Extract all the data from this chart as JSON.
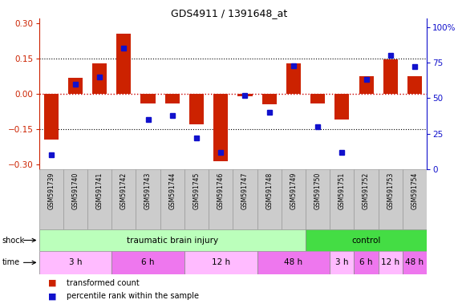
{
  "title": "GDS4911 / 1391648_at",
  "samples": [
    "GSM591739",
    "GSM591740",
    "GSM591741",
    "GSM591742",
    "GSM591743",
    "GSM591744",
    "GSM591745",
    "GSM591746",
    "GSM591747",
    "GSM591748",
    "GSM591749",
    "GSM591750",
    "GSM591751",
    "GSM591752",
    "GSM591753",
    "GSM591754"
  ],
  "bar_values": [
    -0.195,
    0.07,
    0.13,
    0.255,
    -0.04,
    -0.04,
    -0.13,
    -0.285,
    -0.01,
    -0.045,
    0.13,
    -0.04,
    -0.11,
    0.075,
    0.145,
    0.075
  ],
  "dot_values": [
    10,
    60,
    65,
    85,
    35,
    38,
    22,
    12,
    52,
    40,
    73,
    30,
    12,
    63,
    80,
    72
  ],
  "ylim_left": [
    -0.32,
    0.32
  ],
  "ylim_right": [
    0,
    106
  ],
  "yticks_left": [
    -0.3,
    -0.15,
    0,
    0.15,
    0.3
  ],
  "yticks_right": [
    0,
    25,
    50,
    75,
    100
  ],
  "ytick_right_labels": [
    "0",
    "25",
    "50",
    "75",
    "100%"
  ],
  "bar_color": "#cc2200",
  "dot_color": "#1111cc",
  "zero_line_color": "#cc0000",
  "shock_label": "shock",
  "time_label": "time",
  "shock_groups": [
    {
      "label": "traumatic brain injury",
      "start": 0,
      "end": 11,
      "color": "#bbffbb"
    },
    {
      "label": "control",
      "start": 11,
      "end": 16,
      "color": "#44dd44"
    }
  ],
  "time_groups": [
    {
      "label": "3 h",
      "start": 0,
      "end": 3,
      "color": "#ffbbff"
    },
    {
      "label": "6 h",
      "start": 3,
      "end": 6,
      "color": "#ee77ee"
    },
    {
      "label": "12 h",
      "start": 6,
      "end": 9,
      "color": "#ffbbff"
    },
    {
      "label": "48 h",
      "start": 9,
      "end": 12,
      "color": "#ee77ee"
    },
    {
      "label": "3 h",
      "start": 12,
      "end": 13,
      "color": "#ffbbff"
    },
    {
      "label": "6 h",
      "start": 13,
      "end": 14,
      "color": "#ee77ee"
    },
    {
      "label": "12 h",
      "start": 14,
      "end": 15,
      "color": "#ffbbff"
    },
    {
      "label": "48 h",
      "start": 15,
      "end": 16,
      "color": "#ee77ee"
    }
  ],
  "legend_bar_label": "transformed count",
  "legend_dot_label": "percentile rank within the sample",
  "bg_color": "#ffffff",
  "sample_box_color": "#cccccc",
  "sample_box_edge": "#999999"
}
